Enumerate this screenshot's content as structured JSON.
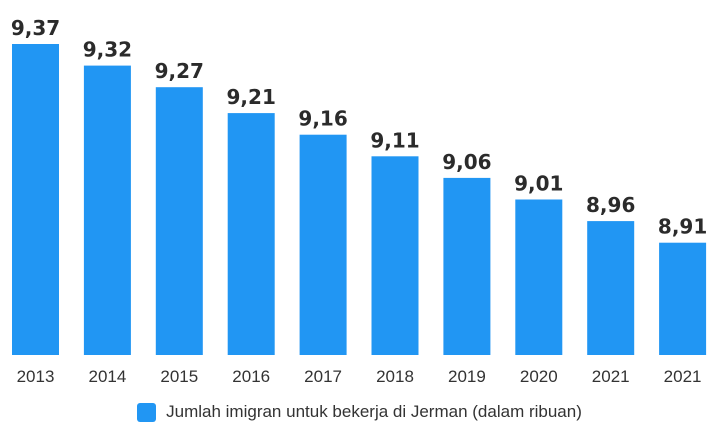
{
  "chart_data": {
    "type": "bar",
    "categories": [
      "2013",
      "2014",
      "2015",
      "2016",
      "2017",
      "2018",
      "2019",
      "2020",
      "2021",
      "2021"
    ],
    "series": [
      {
        "name": "Jumlah imigran untuk bekerja di Jerman (dalam ribuan)",
        "values": [
          9.37,
          9.32,
          9.27,
          9.21,
          9.16,
          9.11,
          9.06,
          9.01,
          8.96,
          8.91
        ],
        "value_labels": [
          "9,37",
          "9,32",
          "9,27",
          "9,21",
          "9,16",
          "9,11",
          "9,06",
          "9,01",
          "8,96",
          "8,91"
        ],
        "color": "#2196F3"
      }
    ],
    "ylim": [
      8.65,
      9.37
    ],
    "grid": false,
    "legend_position": "bottom",
    "title": "",
    "xlabel": "",
    "ylabel": ""
  }
}
